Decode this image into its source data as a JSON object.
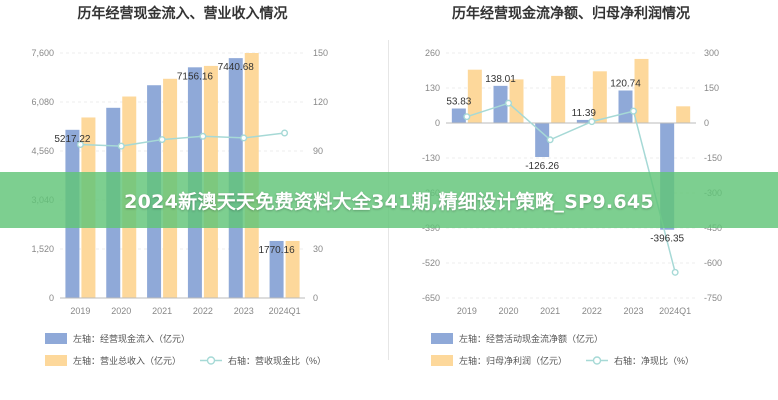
{
  "banner": {
    "text": "2024新澳天天免费资料大全341期,精细设计策略_SP9.645"
  },
  "chart_data": [
    {
      "type": "bar",
      "title": "历年经营现金流入、营业收入情况",
      "categories": [
        "2019",
        "2020",
        "2021",
        "2022",
        "2023",
        "2024Q1"
      ],
      "y_left": {
        "ticks": [
          "0",
          "1,520",
          "3,040",
          "4,560",
          "6,080",
          "7,600"
        ],
        "range": [
          0,
          7600
        ]
      },
      "y_right": {
        "ticks": [
          "0",
          "30",
          "60",
          "90",
          "120",
          "150"
        ],
        "range": [
          0,
          150
        ]
      },
      "series": [
        {
          "name": "左轴：经营现金流入（亿元）",
          "kind": "bar",
          "axis": "left",
          "color": "#8fa9d8",
          "values": [
            5217.22,
            5900,
            6600,
            7156.16,
            7440.68,
            1770.16
          ]
        },
        {
          "name": "左轴：营业总收入（亿元）",
          "kind": "bar",
          "axis": "left",
          "color": "#fdd89b",
          "values": [
            5600,
            6250,
            6800,
            7200,
            7600,
            1770
          ]
        },
        {
          "name": "右轴：营收现金比（%）",
          "kind": "line",
          "axis": "right",
          "color": "#a6d9d6",
          "values": [
            94,
            93,
            97,
            99,
            98,
            101
          ]
        }
      ],
      "data_labels": [
        {
          "index": 0,
          "series": 0,
          "text": "5217.22"
        },
        {
          "index": 3,
          "series": 0,
          "text": "7156.16"
        },
        {
          "index": 4,
          "series": 0,
          "text": "7440.68"
        },
        {
          "index": 5,
          "series": 0,
          "text": "1770.16"
        }
      ],
      "legend_position": "bottom"
    },
    {
      "type": "bar",
      "title": "历年经营现金流净额、归母净利润情况",
      "categories": [
        "2019",
        "2020",
        "2021",
        "2022",
        "2023",
        "2024Q1"
      ],
      "y_left": {
        "ticks": [
          "260",
          "130",
          "0",
          "-130",
          "-260",
          "-390",
          "-520",
          "-650"
        ],
        "range": [
          -650,
          260
        ]
      },
      "y_right": {
        "ticks": [
          "300",
          "150",
          "0",
          "-150",
          "-300",
          "-450",
          "-600",
          "-750"
        ],
        "range": [
          -750,
          300
        ]
      },
      "series": [
        {
          "name": "左轴：经营活动现金流净额（亿元）",
          "kind": "bar",
          "axis": "left",
          "color": "#8fa9d8",
          "values": [
            53.83,
            138.01,
            -126.26,
            11.39,
            120.74,
            -396.35
          ]
        },
        {
          "name": "左轴：归母净利润（亿元）",
          "kind": "bar",
          "axis": "left",
          "color": "#fdd89b",
          "values": [
            198,
            162,
            175,
            192,
            238,
            62
          ]
        },
        {
          "name": "右轴：净现比（%）",
          "kind": "line",
          "axis": "right",
          "color": "#a6d9d6",
          "values": [
            27,
            85,
            -72,
            6,
            51,
            -640
          ]
        }
      ],
      "data_labels": [
        {
          "index": 0,
          "series": 0,
          "text": "53.83"
        },
        {
          "index": 1,
          "series": 0,
          "text": "138.01"
        },
        {
          "index": 2,
          "series": 0,
          "text": "-126.26"
        },
        {
          "index": 3,
          "series": 0,
          "text": "11.39"
        },
        {
          "index": 4,
          "series": 0,
          "text": "120.74"
        },
        {
          "index": 5,
          "series": 0,
          "text": "-396.35"
        }
      ],
      "legend_position": "bottom"
    }
  ]
}
